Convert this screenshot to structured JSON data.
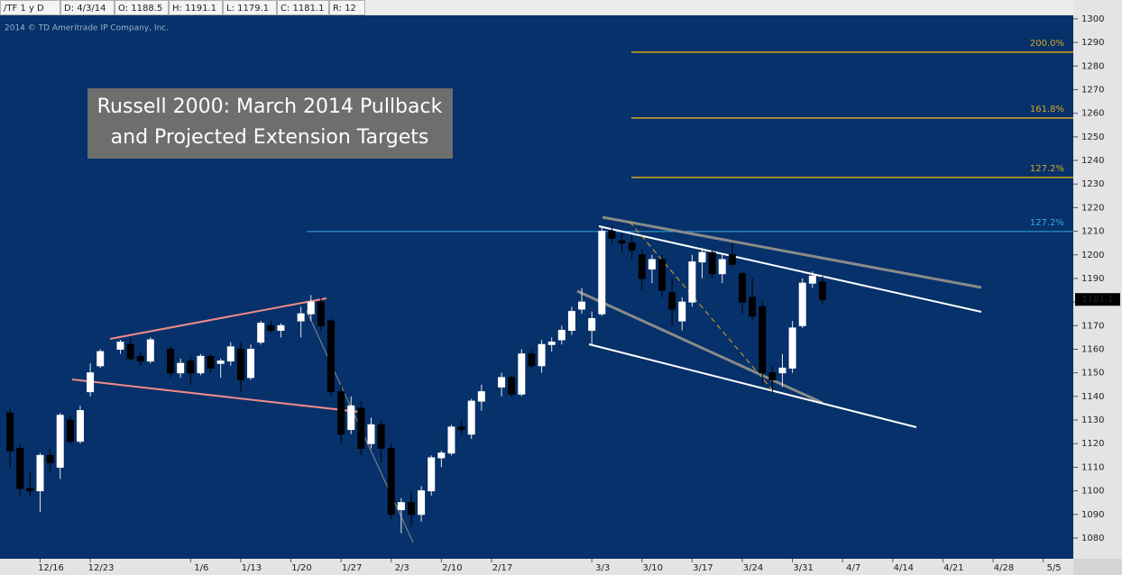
{
  "header": [
    "/TF 1 y D",
    "D: 4/3/14",
    "O: 1188.5",
    "H: 1191.1",
    "L: 1179.1",
    "C: 1181.1",
    "R: 12"
  ],
  "copyright": "2014 © TD Ameritrade IP Company, Inc.",
  "chart_data": {
    "type": "candlestick",
    "title": [
      "Russell 2000: March 2014 Pullback",
      "and Projected Extension Targets"
    ],
    "x": [
      "12/11",
      "12/12",
      "12/13",
      "12/16",
      "12/17",
      "12/18",
      "12/19",
      "12/20",
      "12/23",
      "12/24",
      "12/26",
      "12/27",
      "12/30",
      "12/31",
      "1/2",
      "1/3",
      "1/6",
      "1/7",
      "1/8",
      "1/9",
      "1/10",
      "1/13",
      "1/14",
      "1/15",
      "1/16",
      "1/17",
      "1/21",
      "1/22",
      "1/23",
      "1/24",
      "1/27",
      "1/28",
      "1/29",
      "1/30",
      "1/31",
      "2/3",
      "2/4",
      "2/5",
      "2/6",
      "2/7",
      "2/10",
      "2/11",
      "2/12",
      "2/13",
      "2/14",
      "2/18",
      "2/19",
      "2/20",
      "2/21",
      "2/24",
      "2/25",
      "2/26",
      "2/27",
      "2/28",
      "3/3",
      "3/4",
      "3/5",
      "3/6",
      "3/7",
      "3/10",
      "3/11",
      "3/12",
      "3/13",
      "3/14",
      "3/17",
      "3/18",
      "3/19",
      "3/20",
      "3/21",
      "3/24",
      "3/25",
      "3/26",
      "3/27",
      "3/28",
      "3/31",
      "4/1",
      "4/2",
      "4/3"
    ],
    "open": [
      1133,
      1118,
      1101,
      1100,
      1115,
      1110,
      1130,
      1121,
      1142,
      1153,
      1160,
      1162,
      1157,
      1155,
      1160,
      1150,
      1155,
      1150,
      1157,
      1154,
      1155,
      1160,
      1148,
      1163,
      1170,
      1168,
      1172,
      1175,
      1180,
      1172,
      1142,
      1126,
      1135,
      1120,
      1128,
      1118,
      1092,
      1095,
      1090,
      1100,
      1114,
      1116,
      1127,
      1124,
      1138,
      1144,
      1148,
      1141,
      1158,
      1153,
      1162,
      1164,
      1168,
      1177,
      1168,
      1175,
      1210,
      1206,
      1205,
      1200,
      1194,
      1198,
      1184,
      1172,
      1180,
      1197,
      1201,
      1192,
      1200,
      1192,
      1182,
      1178,
      1150,
      1150,
      1152,
      1170,
      1188,
      1188.5
    ],
    "high": [
      1135,
      1120,
      1108,
      1116,
      1118,
      1133,
      1132,
      1136,
      1154,
      1160,
      1164,
      1165,
      1159,
      1165,
      1161,
      1156,
      1157,
      1158,
      1158,
      1156,
      1163,
      1163,
      1162,
      1172,
      1172,
      1171,
      1178,
      1183,
      1182,
      1173,
      1145,
      1140,
      1138,
      1131,
      1130,
      1120,
      1097,
      1100,
      1102,
      1115,
      1117,
      1128,
      1130,
      1139,
      1145,
      1150,
      1149,
      1160,
      1160,
      1164,
      1165,
      1170,
      1178,
      1186,
      1176,
      1212,
      1212,
      1209,
      1208,
      1202,
      1200,
      1200,
      1190,
      1182,
      1200,
      1203,
      1202,
      1200,
      1205,
      1193,
      1190,
      1180,
      1153,
      1158,
      1172,
      1190,
      1193,
      1191.1
    ],
    "low": [
      1110,
      1098,
      1098,
      1091,
      1108,
      1105,
      1120,
      1120,
      1140,
      1152,
      1158,
      1155,
      1153,
      1154,
      1148,
      1148,
      1145,
      1149,
      1150,
      1148,
      1153,
      1142,
      1147,
      1162,
      1167,
      1165,
      1165,
      1172,
      1168,
      1140,
      1120,
      1124,
      1115,
      1118,
      1112,
      1088,
      1082,
      1085,
      1087,
      1098,
      1110,
      1115,
      1124,
      1122,
      1134,
      1140,
      1140,
      1140,
      1152,
      1150,
      1159,
      1162,
      1166,
      1175,
      1162,
      1174,
      1205,
      1201,
      1198,
      1185,
      1188,
      1182,
      1170,
      1168,
      1178,
      1190,
      1190,
      1188,
      1195,
      1175,
      1172,
      1145,
      1142,
      1144,
      1150,
      1169,
      1186,
      1179.1
    ],
    "close": [
      1117,
      1101,
      1100,
      1115,
      1112,
      1132,
      1121,
      1134,
      1150,
      1159,
      1163,
      1156,
      1155,
      1164,
      1150,
      1154,
      1150,
      1157,
      1152,
      1155,
      1161,
      1147,
      1160,
      1171,
      1168,
      1170,
      1175,
      1180,
      1170,
      1142,
      1124,
      1136,
      1118,
      1128,
      1118,
      1090,
      1095,
      1090,
      1100,
      1114,
      1116,
      1127,
      1126,
      1138,
      1142,
      1148,
      1141,
      1158,
      1153,
      1162,
      1163,
      1168,
      1176,
      1180,
      1173,
      1210,
      1207,
      1205,
      1202,
      1190,
      1198,
      1185,
      1177,
      1180,
      1197,
      1201,
      1192,
      1198,
      1196,
      1180,
      1174,
      1150,
      1147,
      1152,
      1169,
      1188,
      1191,
      1181.1
    ],
    "up_color": "#ffffff",
    "down_color": "#000000",
    "xlim": [
      "12/10",
      "5/8"
    ],
    "xticks": [
      "12/16",
      "12/23",
      "1/6",
      "1/13",
      "1/20",
      "1/27",
      "2/3",
      "2/10",
      "2/17",
      "3/3",
      "3/10",
      "3/17",
      "3/24",
      "3/31",
      "4/7",
      "4/14",
      "4/21",
      "4/28",
      "5/5"
    ],
    "ylim": [
      1071.2,
      1301.5
    ],
    "yticks": [
      1080,
      1090,
      1100,
      1110,
      1120,
      1130,
      1140,
      1150,
      1160,
      1170,
      1180,
      1190,
      1200,
      1210,
      1220,
      1230,
      1240,
      1250,
      1260,
      1270,
      1280,
      1290,
      1300
    ],
    "levels": [
      {
        "value": 1285.9,
        "label": "200.0%",
        "color": "#d9a520"
      },
      {
        "value": 1258.0,
        "label": "161.8%",
        "color": "#d9a520"
      },
      {
        "value": 1232.8,
        "label": "127.2%",
        "color": "#d9a520"
      },
      {
        "value": 1209.9,
        "label": "127.2%",
        "color": "#3aa8e8"
      }
    ]
  }
}
